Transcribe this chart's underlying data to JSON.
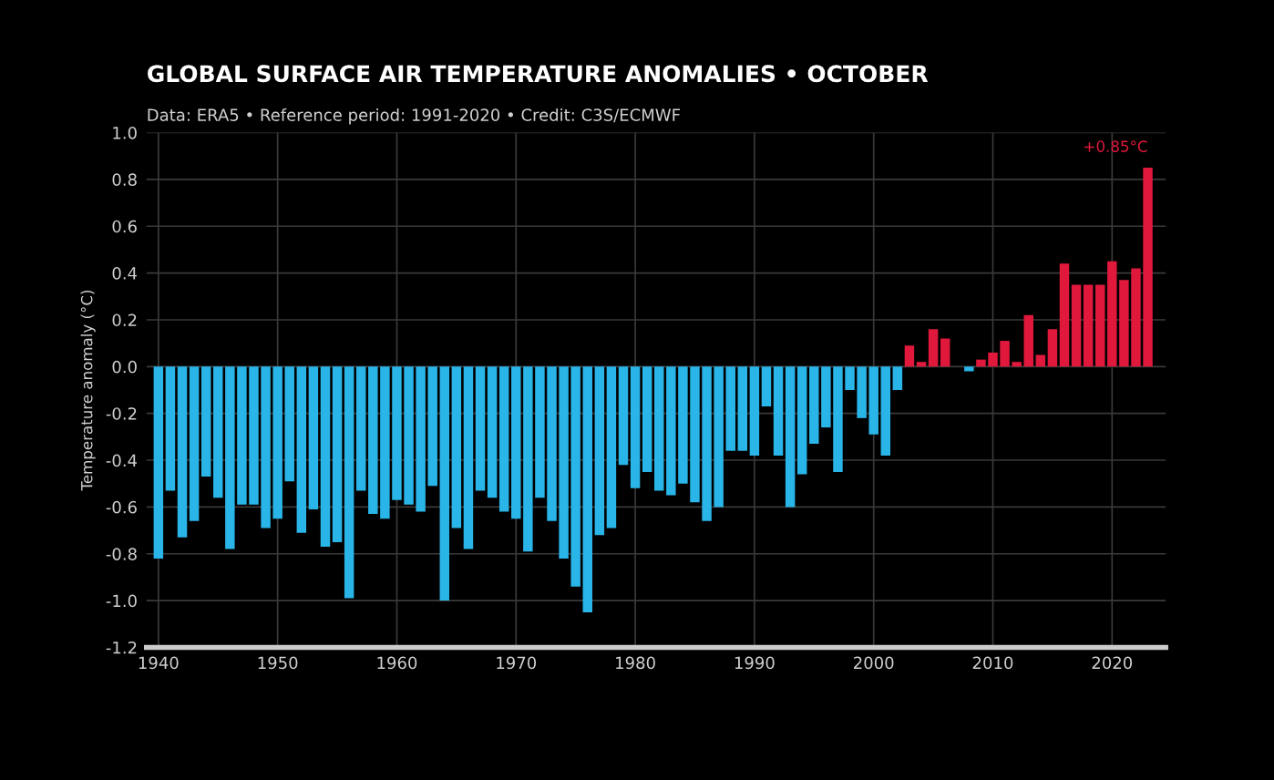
{
  "chart_data": {
    "type": "bar",
    "title": "GLOBAL SURFACE AIR TEMPERATURE ANOMALIES • OCTOBER",
    "subtitle": "Data: ERA5 • Reference period: 1991-2020 • Credit: C3S/ECMWF",
    "ylabel": "Temperature anomaly (°C)",
    "x": [
      1940,
      1941,
      1942,
      1943,
      1944,
      1945,
      1946,
      1947,
      1948,
      1949,
      1950,
      1951,
      1952,
      1953,
      1954,
      1955,
      1956,
      1957,
      1958,
      1959,
      1960,
      1961,
      1962,
      1963,
      1964,
      1965,
      1966,
      1967,
      1968,
      1969,
      1970,
      1971,
      1972,
      1973,
      1974,
      1975,
      1976,
      1977,
      1978,
      1979,
      1980,
      1981,
      1982,
      1983,
      1984,
      1985,
      1986,
      1987,
      1988,
      1989,
      1990,
      1991,
      1992,
      1993,
      1994,
      1995,
      1996,
      1997,
      1998,
      1999,
      2000,
      2001,
      2002,
      2003,
      2004,
      2005,
      2006,
      2007,
      2008,
      2009,
      2010,
      2011,
      2012,
      2013,
      2014,
      2015,
      2016,
      2017,
      2018,
      2019,
      2020,
      2021,
      2022,
      2023
    ],
    "values": [
      -0.82,
      -0.53,
      -0.73,
      -0.66,
      -0.47,
      -0.56,
      -0.78,
      -0.59,
      -0.59,
      -0.69,
      -0.65,
      -0.49,
      -0.71,
      -0.61,
      -0.77,
      -0.75,
      -0.99,
      -0.53,
      -0.63,
      -0.65,
      -0.57,
      -0.59,
      -0.62,
      -0.51,
      -1.0,
      -0.69,
      -0.78,
      -0.53,
      -0.56,
      -0.62,
      -0.65,
      -0.79,
      -0.56,
      -0.66,
      -0.82,
      -0.94,
      -1.05,
      -0.72,
      -0.69,
      -0.42,
      -0.52,
      -0.45,
      -0.53,
      -0.55,
      -0.5,
      -0.58,
      -0.66,
      -0.6,
      -0.36,
      -0.36,
      -0.38,
      -0.17,
      -0.38,
      -0.6,
      -0.46,
      -0.33,
      -0.26,
      -0.45,
      -0.1,
      -0.22,
      -0.29,
      -0.38,
      -0.1,
      0.09,
      0.02,
      0.16,
      0.12,
      0.0,
      -0.02,
      0.03,
      0.06,
      0.11,
      0.02,
      0.22,
      0.05,
      0.16,
      0.44,
      0.35,
      0.35,
      0.35,
      0.45,
      0.37,
      0.42,
      0.85
    ],
    "colors": [
      "#29b5e8",
      "#29b5e8",
      "#29b5e8",
      "#29b5e8",
      "#29b5e8",
      "#29b5e8",
      "#29b5e8",
      "#29b5e8",
      "#29b5e8",
      "#29b5e8",
      "#29b5e8",
      "#29b5e8",
      "#29b5e8",
      "#29b5e8",
      "#29b5e8",
      "#29b5e8",
      "#29b5e8",
      "#29b5e8",
      "#29b5e8",
      "#29b5e8",
      "#29b5e8",
      "#29b5e8",
      "#29b5e8",
      "#29b5e8",
      "#29b5e8",
      "#29b5e8",
      "#29b5e8",
      "#29b5e8",
      "#29b5e8",
      "#29b5e8",
      "#29b5e8",
      "#29b5e8",
      "#29b5e8",
      "#29b5e8",
      "#29b5e8",
      "#29b5e8",
      "#29b5e8",
      "#29b5e8",
      "#29b5e8",
      "#29b5e8",
      "#29b5e8",
      "#29b5e8",
      "#29b5e8",
      "#29b5e8",
      "#29b5e8",
      "#29b5e8",
      "#29b5e8",
      "#29b5e8",
      "#29b5e8",
      "#29b5e8",
      "#29b5e8",
      "#29b5e8",
      "#29b5e8",
      "#29b5e8",
      "#29b5e8",
      "#29b5e8",
      "#29b5e8",
      "#29b5e8",
      "#29b5e8",
      "#29b5e8",
      "#29b5e8",
      "#29b5e8",
      "#29b5e8",
      "#e0183c",
      "#e0183c",
      "#e0183c",
      "#e0183c",
      "#e0183c",
      "#29b5e8",
      "#e0183c",
      "#e0183c",
      "#e0183c",
      "#e0183c",
      "#e0183c",
      "#e0183c",
      "#e0183c",
      "#e0183c",
      "#e0183c",
      "#e0183c",
      "#e0183c",
      "#e0183c",
      "#e0183c",
      "#e0183c",
      "#e0183c"
    ],
    "xlim": [
      1939,
      2024.5
    ],
    "xticks": [
      1940,
      1950,
      1960,
      1970,
      1980,
      1990,
      2000,
      2010,
      2020
    ],
    "ylim": [
      -1.2,
      1.0
    ],
    "yticks": [
      {
        "value": -1.2,
        "label": "-1.2"
      },
      {
        "value": -1.0,
        "label": "-1.0"
      },
      {
        "value": -0.8,
        "label": "-0.8"
      },
      {
        "value": -0.6,
        "label": "-0.6"
      },
      {
        "value": -0.4,
        "label": "-0.4"
      },
      {
        "value": -0.2,
        "label": "-0.2"
      },
      {
        "value": 0,
        "label": "0.0"
      },
      {
        "value": 0.2,
        "label": "0.2"
      },
      {
        "value": 0.4,
        "label": "0.4"
      },
      {
        "value": 0.6,
        "label": "0.6"
      },
      {
        "value": 0.8,
        "label": "0.8"
      },
      {
        "value": 1.0,
        "label": "1.0"
      }
    ],
    "grid": true,
    "annotations": [
      {
        "text": "+0.85°C",
        "x": 2023,
        "y": 0.85
      }
    ]
  }
}
